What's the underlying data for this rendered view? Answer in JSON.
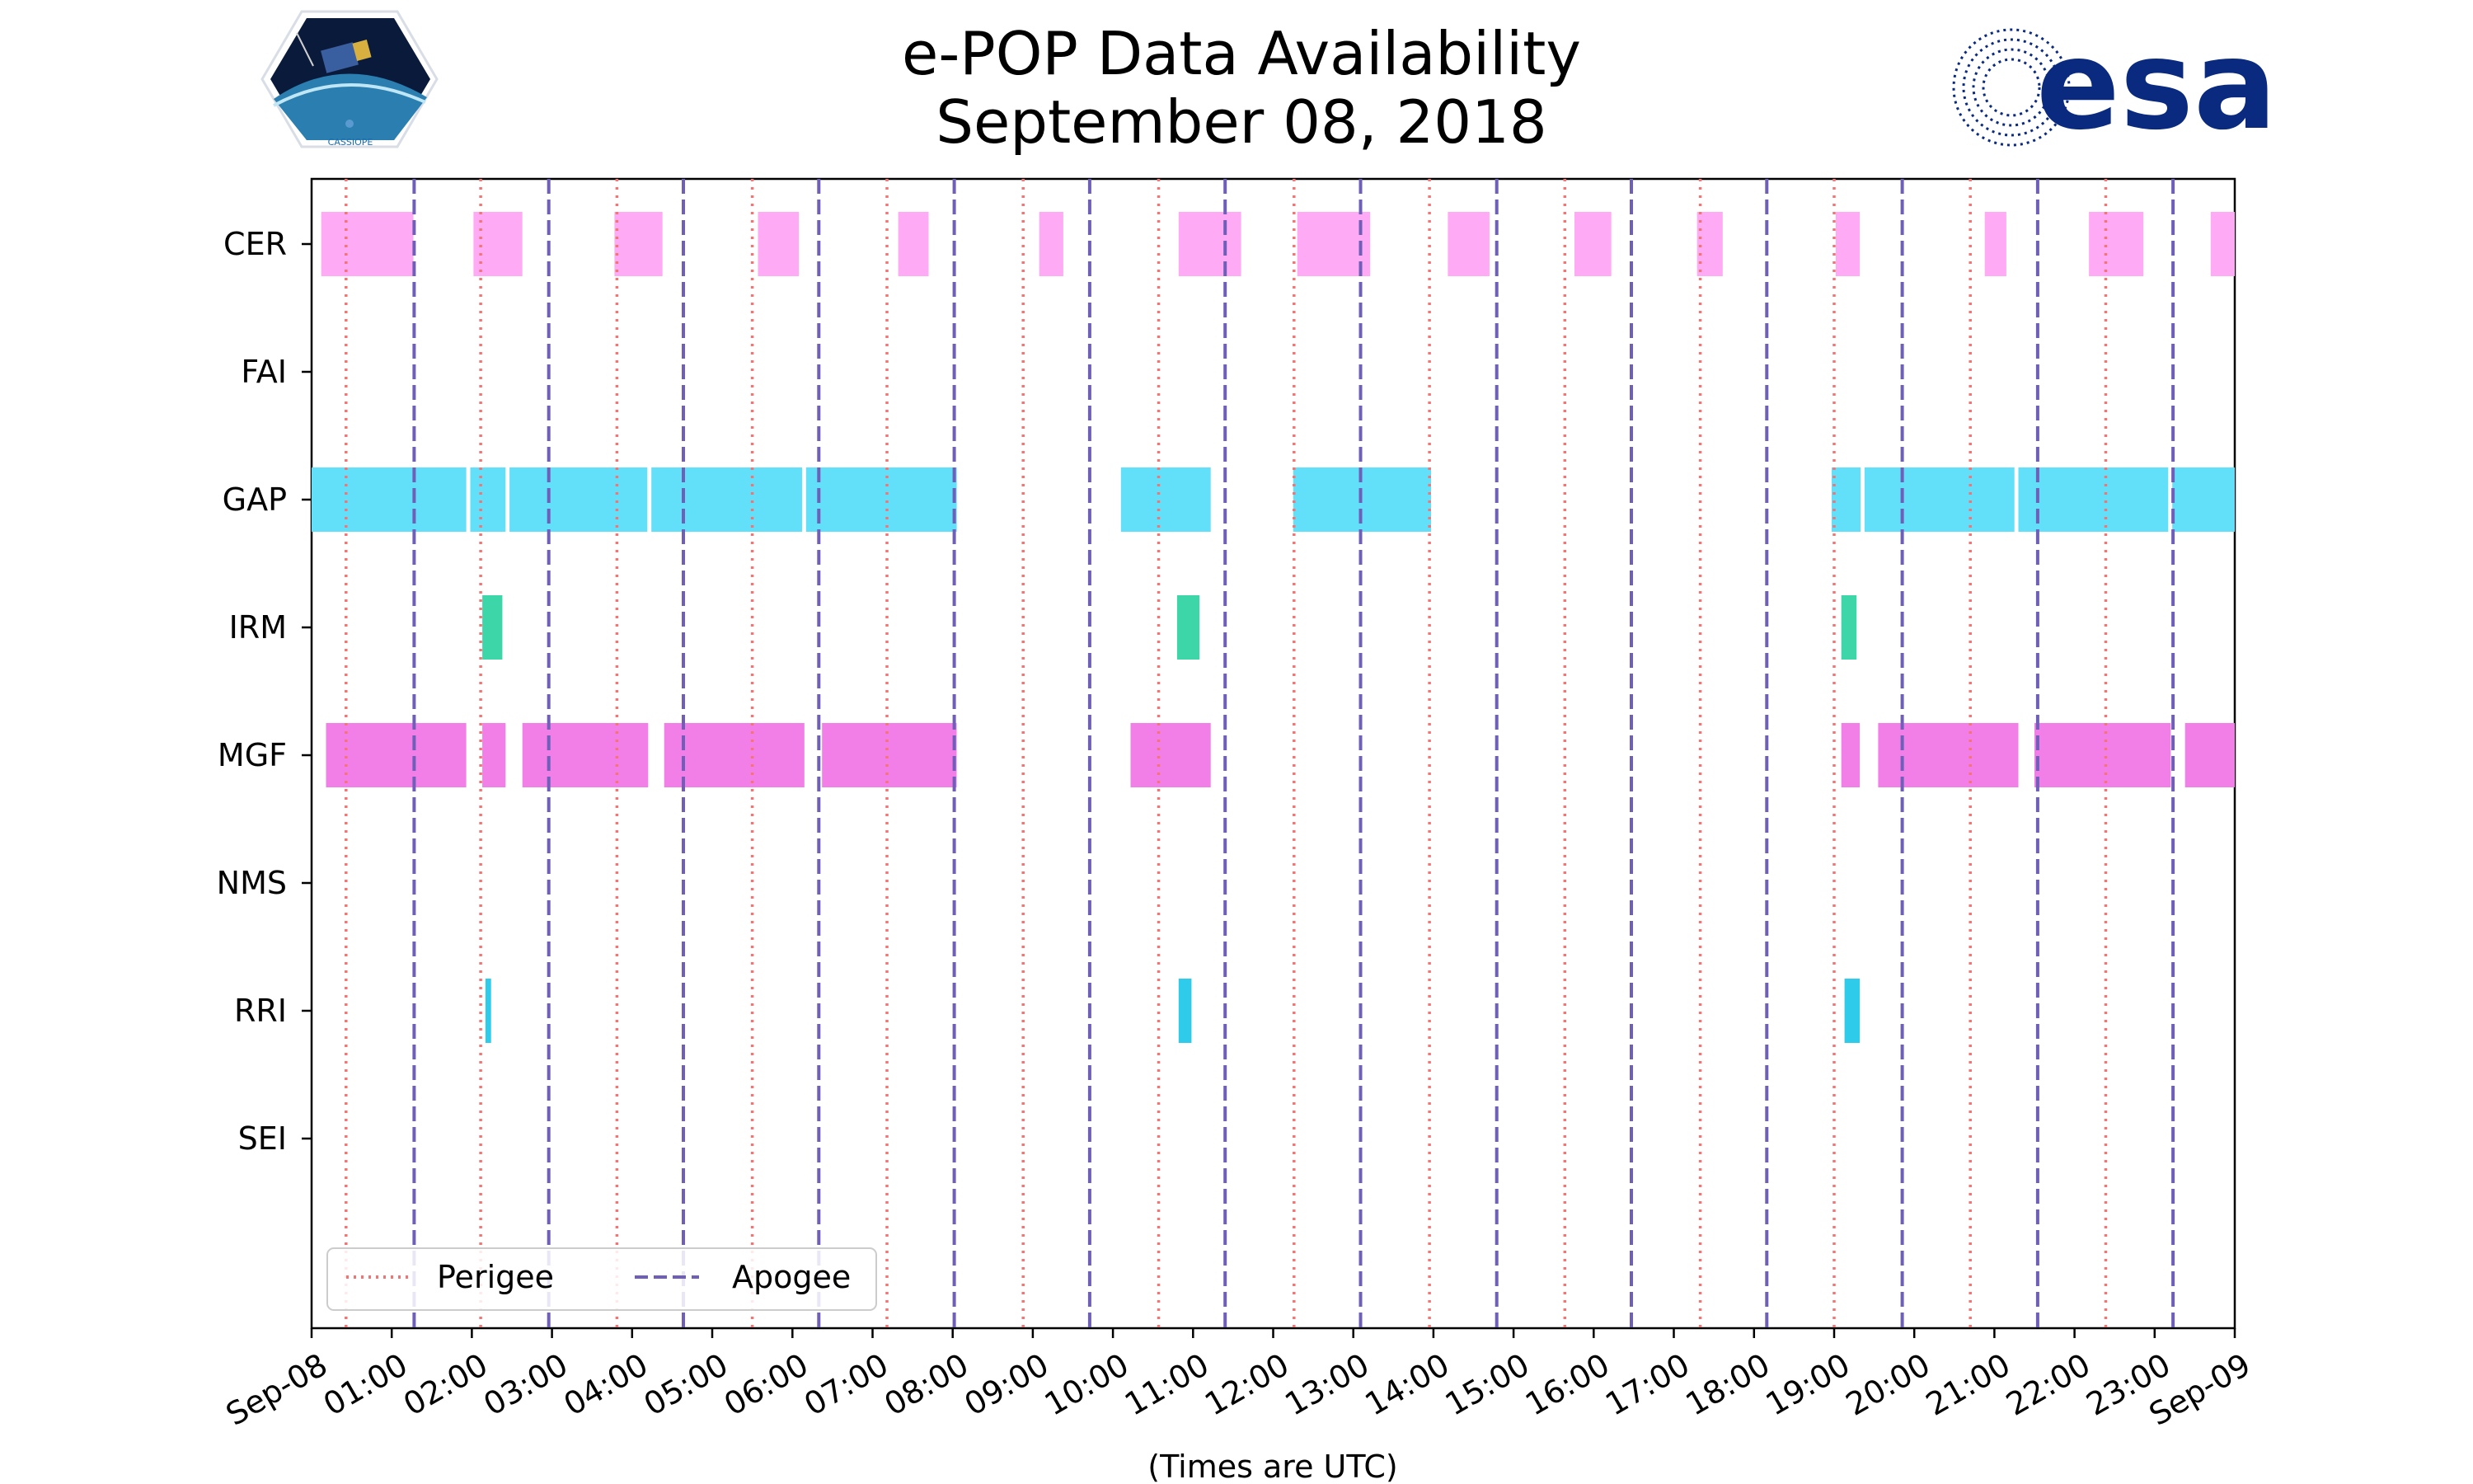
{
  "chart_data": {
    "type": "timeline",
    "title_line1": "e-POP Data Availability",
    "title_line2": "September 08, 2018",
    "xlabel": "(Times are UTC)",
    "x_unit": "hours since 2018-09-08 00:00 UTC",
    "xlim": [
      0,
      24
    ],
    "x_tick_labels": [
      "Sep-08",
      "01:00",
      "02:00",
      "03:00",
      "04:00",
      "05:00",
      "06:00",
      "07:00",
      "08:00",
      "09:00",
      "10:00",
      "11:00",
      "12:00",
      "13:00",
      "14:00",
      "15:00",
      "16:00",
      "17:00",
      "18:00",
      "19:00",
      "20:00",
      "21:00",
      "22:00",
      "23:00",
      "Sep-09"
    ],
    "instruments": [
      "CER",
      "FAI",
      "GAP",
      "IRM",
      "MGF",
      "NMS",
      "RRI",
      "SEI"
    ],
    "series": [
      {
        "name": "CER",
        "color": "#ffaaf4",
        "intervals": [
          [
            0.12,
            1.27
          ],
          [
            2.02,
            2.63
          ],
          [
            3.78,
            4.38
          ],
          [
            5.57,
            6.08
          ],
          [
            7.32,
            7.7
          ],
          [
            9.08,
            9.38
          ],
          [
            10.82,
            11.6
          ],
          [
            12.3,
            13.21
          ],
          [
            14.18,
            14.7
          ],
          [
            15.76,
            16.22
          ],
          [
            17.29,
            17.61
          ],
          [
            19.02,
            19.32
          ],
          [
            20.88,
            21.15
          ],
          [
            22.18,
            22.86
          ],
          [
            23.7,
            24.0
          ]
        ]
      },
      {
        "name": "FAI",
        "color": "#9a8cff",
        "intervals": []
      },
      {
        "name": "GAP",
        "color": "#62e0fa",
        "intervals": [
          [
            0.0,
            1.93
          ],
          [
            1.98,
            2.42
          ],
          [
            2.47,
            4.19
          ],
          [
            4.24,
            6.12
          ],
          [
            6.17,
            8.05
          ],
          [
            10.1,
            11.22
          ],
          [
            12.25,
            13.97
          ],
          [
            18.97,
            19.33
          ],
          [
            19.38,
            21.25
          ],
          [
            21.3,
            23.17
          ],
          [
            23.22,
            24.0
          ]
        ]
      },
      {
        "name": "IRM",
        "color": "#3cd6a8",
        "intervals": [
          [
            2.13,
            2.38
          ],
          [
            10.8,
            11.08
          ],
          [
            19.09,
            19.28
          ]
        ]
      },
      {
        "name": "MGF",
        "color": "#f27ee8",
        "intervals": [
          [
            0.18,
            1.93
          ],
          [
            2.13,
            2.42
          ],
          [
            2.63,
            4.2
          ],
          [
            4.4,
            6.15
          ],
          [
            6.37,
            8.05
          ],
          [
            10.22,
            11.22
          ],
          [
            19.09,
            19.32
          ],
          [
            19.55,
            21.3
          ],
          [
            21.5,
            23.2
          ],
          [
            23.38,
            24.0
          ]
        ]
      },
      {
        "name": "NMS",
        "color": "#c7d45a",
        "intervals": []
      },
      {
        "name": "RRI",
        "color": "#2ecbea",
        "intervals": [
          [
            2.17,
            2.24
          ],
          [
            10.82,
            10.98
          ],
          [
            19.13,
            19.32
          ]
        ]
      },
      {
        "name": "SEI",
        "color": "#f4a05a",
        "intervals": []
      }
    ],
    "perigee_times": [
      0.43,
      2.11,
      3.81,
      5.5,
      7.18,
      8.88,
      10.57,
      12.26,
      13.95,
      15.64,
      17.33,
      19.0,
      20.7,
      22.39
    ],
    "apogee_times": [
      1.28,
      2.96,
      4.64,
      6.33,
      8.02,
      9.71,
      11.4,
      13.09,
      14.79,
      16.47,
      18.16,
      19.85,
      21.54,
      23.23
    ],
    "perigee_color": "#f47474",
    "apogee_color": "#6f5fb8",
    "legend": {
      "placement": "bottom-left",
      "entries": [
        {
          "label": "Perigee",
          "style": "dotted"
        },
        {
          "label": "Apogee",
          "style": "dashed"
        }
      ]
    }
  },
  "logos": {
    "left": {
      "name": "CASSIOPE mission logo",
      "text": "CASSIOPE"
    },
    "right": {
      "name": "ESA logo",
      "text": "esa",
      "color": "#0a2a80"
    }
  }
}
